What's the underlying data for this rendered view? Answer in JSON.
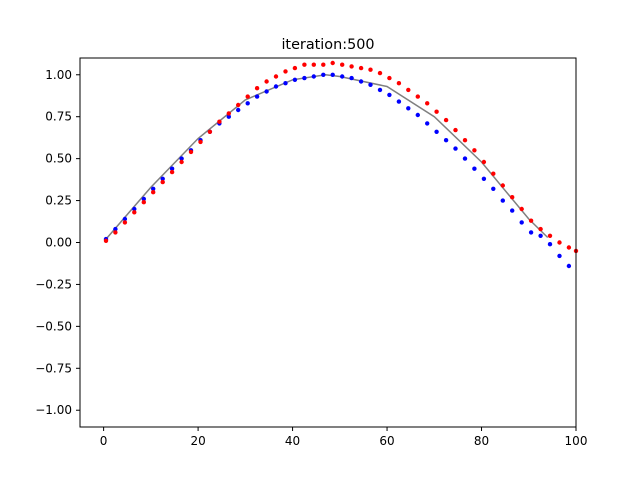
{
  "chart_data": {
    "type": "scatter",
    "title": "iteration:500",
    "xlabel": "",
    "ylabel": "",
    "xlim": [
      -5,
      100
    ],
    "ylim": [
      -1.1,
      1.1
    ],
    "x_ticks": [
      0,
      20,
      40,
      60,
      80,
      100
    ],
    "x_tick_labels": [
      "0",
      "20",
      "40",
      "60",
      "80",
      "100"
    ],
    "y_ticks": [
      -1.0,
      -0.75,
      -0.5,
      -0.25,
      0.0,
      0.25,
      0.5,
      0.75,
      1.0
    ],
    "y_tick_labels": [
      "−1.00",
      "−0.75",
      "−0.50",
      "−0.25",
      "0.00",
      "0.25",
      "0.50",
      "0.75",
      "1.00"
    ],
    "grid": false,
    "legend": "none",
    "series": [
      {
        "color": "#808080",
        "mode": "line",
        "x": [
          0.5,
          10,
          20,
          30,
          40,
          47,
          50,
          60,
          70,
          80,
          90,
          94
        ],
        "y": [
          0.02,
          0.33,
          0.62,
          0.85,
          0.97,
          1.0,
          0.99,
          0.93,
          0.75,
          0.48,
          0.14,
          0.03
        ]
      },
      {
        "color": "#0000ff",
        "mode": "markers",
        "x": [
          0.5,
          2.5,
          4.5,
          6.5,
          8.5,
          10.5,
          12.5,
          14.5,
          16.5,
          18.5,
          20.5,
          22.5,
          24.5,
          26.5,
          28.5,
          30.5,
          32.5,
          34.5,
          36.5,
          38.5,
          40.5,
          42.5,
          44.5,
          46.5,
          48.5,
          50.5,
          52.5,
          54.5,
          56.5,
          58.5,
          60.5,
          62.5,
          64.5,
          66.5,
          68.5,
          70.5,
          72.5,
          74.5,
          76.5,
          78.5,
          80.5,
          82.5,
          84.5,
          86.5,
          88.5,
          90.5,
          92.5,
          94.5,
          96.5,
          98.5
        ],
        "y": [
          0.02,
          0.08,
          0.14,
          0.2,
          0.26,
          0.32,
          0.38,
          0.44,
          0.5,
          0.55,
          0.61,
          0.66,
          0.71,
          0.75,
          0.79,
          0.83,
          0.87,
          0.9,
          0.93,
          0.95,
          0.97,
          0.98,
          0.99,
          1.0,
          1.0,
          0.99,
          0.98,
          0.96,
          0.94,
          0.91,
          0.88,
          0.84,
          0.8,
          0.76,
          0.71,
          0.66,
          0.61,
          0.56,
          0.5,
          0.44,
          0.38,
          0.32,
          0.25,
          0.19,
          0.12,
          0.06,
          0.04,
          -0.01,
          -0.08,
          -0.14
        ]
      },
      {
        "color": "#ff0000",
        "mode": "markers",
        "x": [
          0.5,
          2.5,
          4.5,
          6.5,
          8.5,
          10.5,
          12.5,
          14.5,
          16.5,
          18.5,
          20.5,
          22.5,
          24.5,
          26.5,
          28.5,
          30.5,
          32.5,
          34.5,
          36.5,
          38.5,
          40.5,
          42.5,
          44.5,
          46.5,
          48.5,
          50.5,
          52.5,
          54.5,
          56.5,
          58.5,
          60.5,
          62.5,
          64.5,
          66.5,
          68.5,
          70.5,
          72.5,
          74.5,
          76.5,
          78.5,
          80.5,
          82.5,
          84.5,
          86.5,
          88.5,
          90.5,
          92.5,
          94.5,
          96.5,
          98.5,
          100
        ],
        "y": [
          0.01,
          0.06,
          0.12,
          0.18,
          0.24,
          0.3,
          0.36,
          0.42,
          0.48,
          0.54,
          0.6,
          0.66,
          0.72,
          0.77,
          0.82,
          0.87,
          0.92,
          0.96,
          0.99,
          1.02,
          1.04,
          1.06,
          1.06,
          1.06,
          1.07,
          1.06,
          1.05,
          1.04,
          1.03,
          1.01,
          0.98,
          0.95,
          0.91,
          0.87,
          0.83,
          0.78,
          0.73,
          0.67,
          0.61,
          0.55,
          0.48,
          0.41,
          0.34,
          0.27,
          0.2,
          0.13,
          0.08,
          0.04,
          0.0,
          -0.03,
          -0.05
        ]
      }
    ]
  }
}
